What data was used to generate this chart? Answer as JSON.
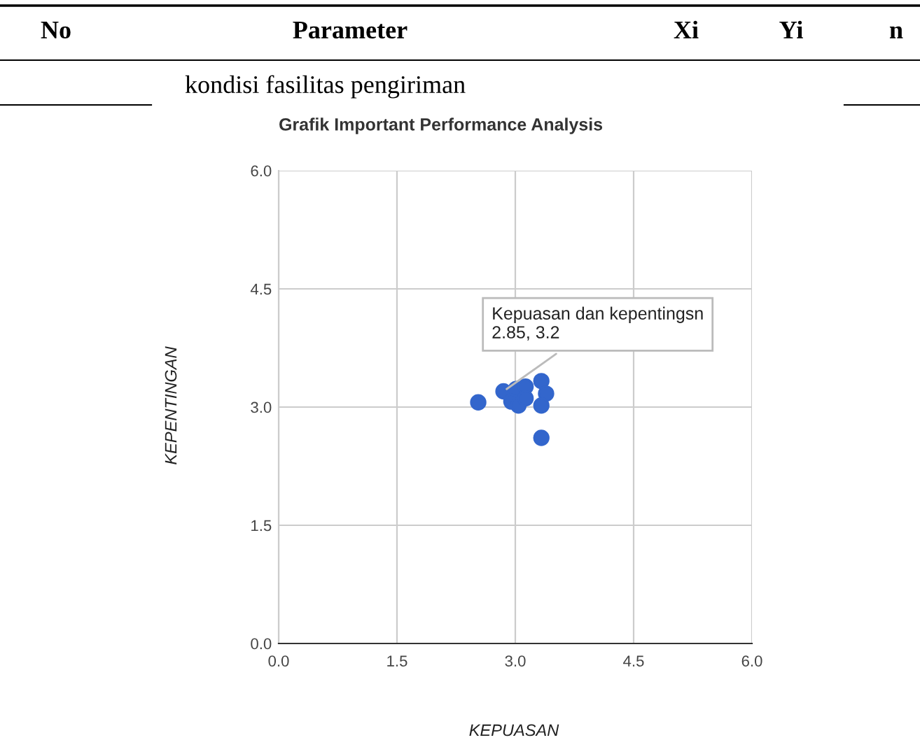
{
  "chart_data": {
    "type": "scatter",
    "title": "Grafik Important Performance Analysis",
    "xlabel": "KEPUASAN",
    "ylabel": "KEPENTINGAN",
    "x": [
      2.53,
      2.85,
      2.95,
      3.04,
      3.01,
      3.13,
      3.13,
      3.33,
      3.39,
      3.33,
      3.33
    ],
    "values": [
      3.06,
      3.2,
      3.07,
      3.02,
      3.23,
      3.26,
      3.11,
      3.33,
      3.17,
      3.02,
      2.61
    ],
    "color": "#3366cc",
    "marker": "circle",
    "xlim": [
      0,
      6
    ],
    "ylim": [
      0,
      6
    ],
    "xticks": [
      {
        "value": 0,
        "label": "0.0"
      },
      {
        "value": 1.5,
        "label": "1.5"
      },
      {
        "value": 3,
        "label": "3.0"
      },
      {
        "value": 4.5,
        "label": "4.5"
      },
      {
        "value": 6,
        "label": "6.0"
      }
    ],
    "yticks": [
      {
        "value": 0,
        "label": "0.0"
      },
      {
        "value": 1.5,
        "label": "1.5"
      },
      {
        "value": 3,
        "label": "3.0"
      },
      {
        "value": 4.5,
        "label": "4.5"
      },
      {
        "value": 6,
        "label": "6.0"
      }
    ],
    "grid": true,
    "annotations": [
      {
        "text": "Kepuasan dan kepentingsn\n2.85, 3.2",
        "x": 2.85,
        "y": 3.2
      },
      "No",
      "Parameter",
      "Xi",
      "Yi",
      "n",
      "kondisi fasilitas pengiriman"
    ]
  }
}
